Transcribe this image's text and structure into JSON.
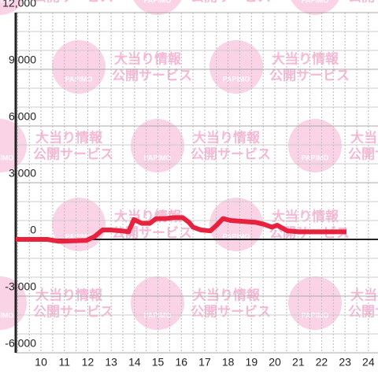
{
  "watermark": {
    "logo": "PAPIMO",
    "lines": [
      "大当り情報",
      "公開サービス"
    ]
  },
  "chart_data": {
    "type": "line",
    "x": [
      8.92,
      10.27,
      10.77,
      11.95,
      12.29,
      12.63,
      12.96,
      13.47,
      13.74,
      13.97,
      14.31,
      14.65,
      14.92,
      15.32,
      15.66,
      16.06,
      16.33,
      16.5,
      16.84,
      17.24,
      17.51,
      17.78,
      18.11,
      18.69,
      19.19,
      19.53,
      19.87,
      20.1,
      20.54,
      21.04,
      23.06
    ],
    "series": [
      {
        "color": "#e8213f",
        "values": [
          0,
          0,
          -100,
          -50,
          150,
          500,
          500,
          450,
          400,
          1050,
          850,
          850,
          1100,
          1100,
          1150,
          1150,
          900,
          650,
          500,
          450,
          750,
          1100,
          1000,
          950,
          900,
          800,
          650,
          750,
          450,
          400,
          400
        ]
      }
    ],
    "xlim": [
      8.92,
      24.41
    ],
    "xticks": [
      10,
      11,
      12,
      13,
      14,
      15,
      16,
      17,
      18,
      19,
      20,
      21,
      22,
      23,
      24
    ],
    "x_minor_ticks": [
      9,
      9.5,
      10.5,
      11.5,
      12.5,
      13.5,
      14.5,
      15.5,
      16.5,
      17.5,
      18.5,
      19.5,
      20.5,
      21.5,
      22.5,
      23.5
    ],
    "ylim": [
      -6000,
      12000
    ],
    "yticks": [
      {
        "value": -6000,
        "label": "-6,000"
      },
      {
        "value": -3000,
        "label": "-3,000"
      },
      0,
      {
        "value": 3000,
        "label": "3,000"
      },
      {
        "value": 6000,
        "label": "6,000"
      },
      {
        "value": 9000,
        "label": "9,000"
      },
      {
        "value": 12000,
        "label": "12,000"
      }
    ],
    "y_minor_ticks": [
      -5000,
      -4000,
      -2000,
      -1000,
      1000,
      2000,
      4000,
      5000,
      7000,
      8000,
      10000,
      11000
    ],
    "grid": true
  }
}
